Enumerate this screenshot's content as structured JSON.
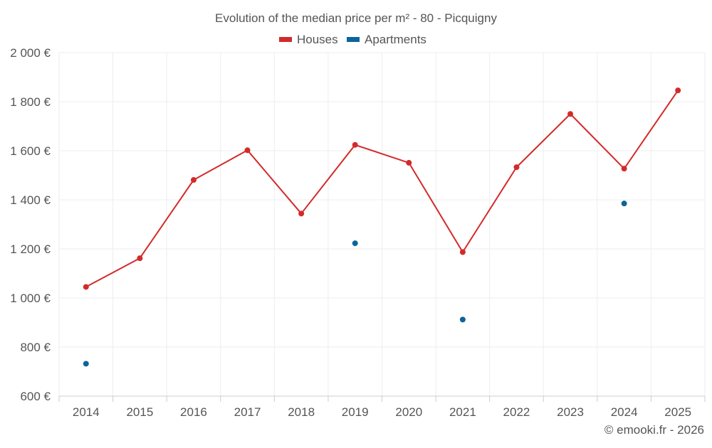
{
  "chart_data": {
    "type": "line",
    "title": "Evolution of the median price per m² - 80 - Picquigny",
    "categories": [
      "2014",
      "2015",
      "2016",
      "2017",
      "2018",
      "2019",
      "2020",
      "2021",
      "2022",
      "2023",
      "2024",
      "2025"
    ],
    "series": [
      {
        "name": "Houses",
        "color": "#d32a2a",
        "values": [
          1045,
          1162,
          1481,
          1602,
          1344,
          1624,
          1551,
          1187,
          1533,
          1750,
          1527,
          1846
        ]
      },
      {
        "name": "Apartments",
        "color": "#0d6499",
        "values": [
          732,
          null,
          null,
          null,
          null,
          1223,
          null,
          912,
          null,
          null,
          1385,
          null
        ]
      }
    ],
    "ylim": [
      600,
      2000
    ],
    "yticks": [
      600,
      800,
      1000,
      1200,
      1400,
      1600,
      1800,
      2000
    ],
    "ytick_labels": [
      "600 €",
      "800 €",
      "1 000 €",
      "1 200 €",
      "1 400 €",
      "1 600 €",
      "1 800 €",
      "2 000 €"
    ],
    "xlabel": "",
    "ylabel": "",
    "grid": true,
    "legend_position": "top-center"
  },
  "credit": "© emooki.fr - 2026",
  "colors": {
    "axis": "#cccccc",
    "grid": "#eeeeee",
    "text": "#555555"
  }
}
